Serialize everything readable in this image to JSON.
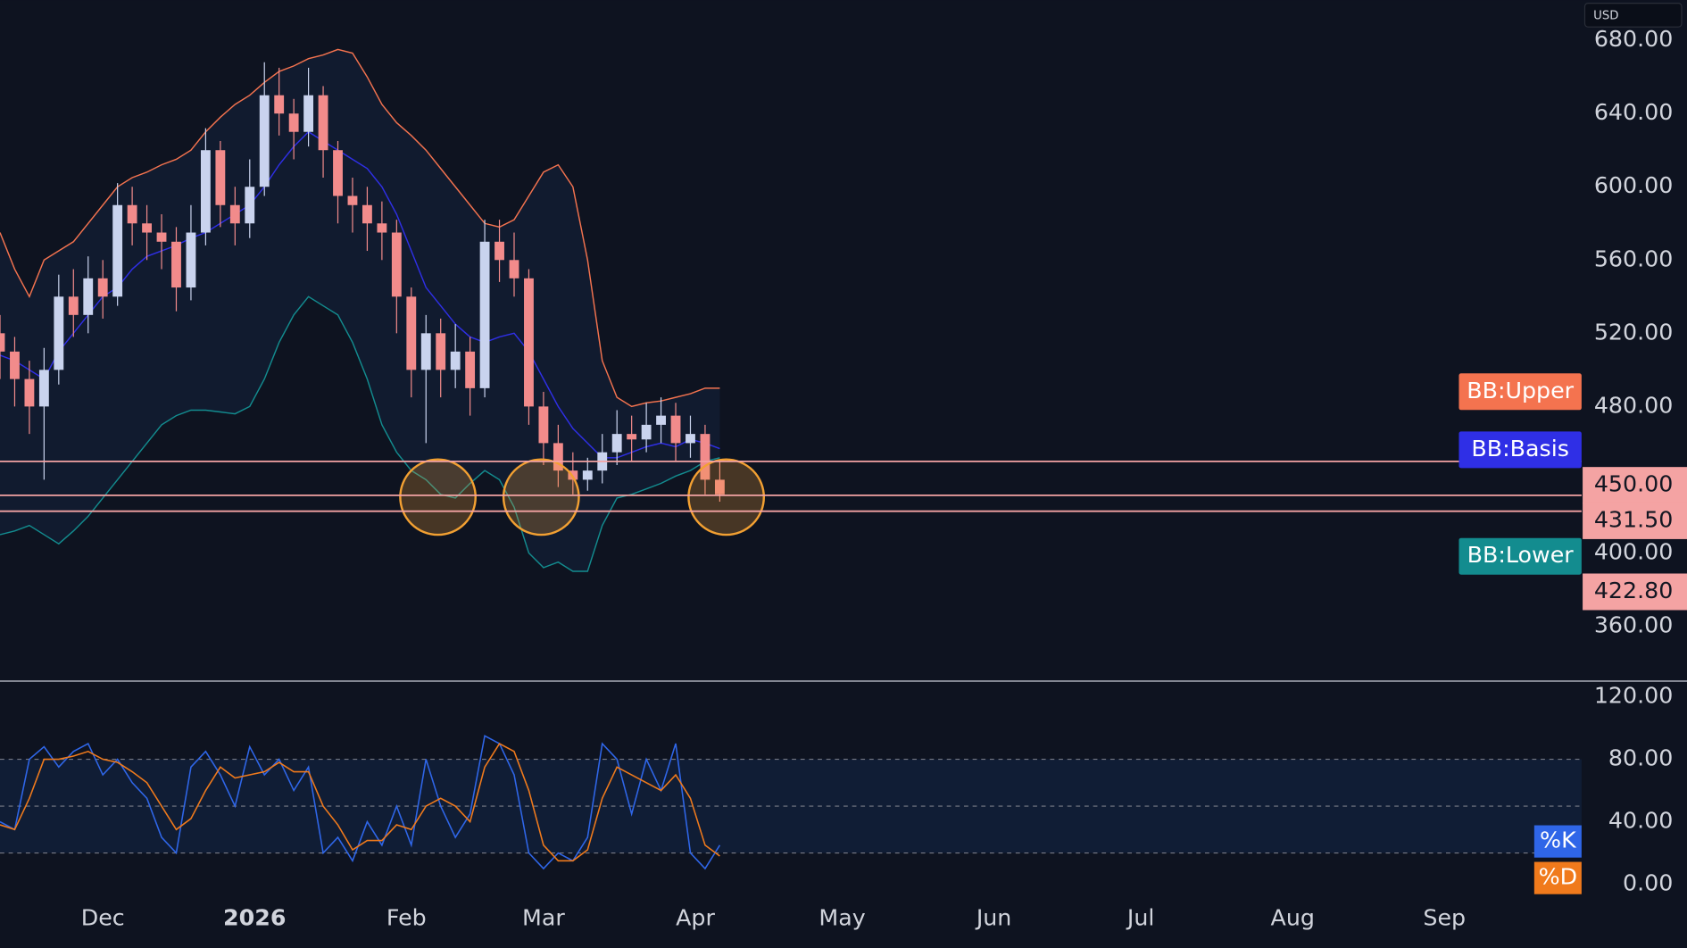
{
  "chart_data": [
    {
      "type": "candlestick",
      "currency": "USD",
      "x": [
        0,
        3,
        6,
        9,
        12,
        15,
        18,
        21,
        24,
        27,
        30,
        33,
        36,
        39,
        42,
        45,
        48,
        51,
        54,
        57,
        60,
        63,
        66,
        69,
        72,
        75,
        78,
        81,
        84,
        87,
        90,
        93,
        96,
        99,
        102,
        105,
        108,
        111,
        114,
        117,
        120,
        123,
        126,
        129,
        132,
        135,
        138,
        141,
        144,
        147
      ],
      "open": [
        520,
        510,
        495,
        480,
        500,
        540,
        530,
        550,
        540,
        590,
        580,
        575,
        570,
        545,
        575,
        620,
        590,
        580,
        600,
        650,
        640,
        630,
        650,
        620,
        595,
        590,
        580,
        575,
        540,
        500,
        520,
        500,
        510,
        490,
        570,
        560,
        550,
        480,
        460,
        445,
        440,
        445,
        455,
        465,
        462,
        470,
        475,
        460,
        465,
        440
      ],
      "high": [
        530,
        518,
        505,
        512,
        552,
        555,
        562,
        560,
        602,
        600,
        590,
        585,
        578,
        590,
        632,
        625,
        600,
        615,
        668,
        665,
        648,
        665,
        655,
        625,
        605,
        600,
        592,
        582,
        545,
        530,
        528,
        525,
        518,
        582,
        582,
        575,
        555,
        488,
        470,
        455,
        452,
        465,
        478,
        475,
        482,
        485,
        482,
        475,
        470,
        450
      ],
      "low": [
        495,
        480,
        465,
        440,
        492,
        518,
        520,
        528,
        535,
        568,
        560,
        555,
        532,
        538,
        568,
        578,
        568,
        572,
        595,
        628,
        615,
        622,
        605,
        580,
        575,
        565,
        560,
        520,
        485,
        460,
        485,
        490,
        475,
        485,
        548,
        540,
        470,
        448,
        436,
        432,
        434,
        438,
        448,
        450,
        455,
        460,
        450,
        452,
        432,
        428
      ],
      "close": [
        510,
        495,
        480,
        500,
        540,
        530,
        550,
        540,
        590,
        580,
        575,
        570,
        545,
        575,
        620,
        590,
        580,
        600,
        650,
        640,
        630,
        650,
        620,
        595,
        590,
        580,
        575,
        540,
        500,
        520,
        500,
        510,
        490,
        570,
        560,
        550,
        480,
        460,
        445,
        440,
        445,
        455,
        465,
        462,
        470,
        475,
        460,
        465,
        440,
        432
      ],
      "up_color": "#c9d3ee",
      "down_color": "#f28b8b",
      "series": [
        {
          "name": "BB:Upper",
          "color": "#f4734f",
          "values": [
            575,
            555,
            540,
            560,
            565,
            570,
            580,
            590,
            600,
            605,
            608,
            612,
            615,
            620,
            630,
            638,
            645,
            650,
            657,
            663,
            666,
            670,
            672,
            675,
            673,
            660,
            645,
            635,
            628,
            620,
            610,
            600,
            590,
            580,
            578,
            582,
            595,
            608,
            612,
            600,
            560,
            505,
            485,
            480,
            482,
            483,
            485,
            487,
            490,
            490
          ]
        },
        {
          "name": "BB:Basis",
          "color": "#2f2fe6",
          "values": [
            508,
            505,
            500,
            495,
            510,
            520,
            530,
            540,
            545,
            555,
            562,
            565,
            568,
            572,
            575,
            580,
            585,
            590,
            600,
            612,
            622,
            630,
            625,
            620,
            615,
            610,
            600,
            585,
            565,
            545,
            535,
            525,
            518,
            515,
            518,
            520,
            510,
            495,
            480,
            468,
            460,
            452,
            452,
            455,
            458,
            460,
            458,
            462,
            460,
            457
          ]
        },
        {
          "name": "BB:Lower",
          "color": "#138c8f",
          "values": [
            410,
            412,
            415,
            410,
            405,
            412,
            420,
            430,
            440,
            450,
            460,
            470,
            475,
            478,
            478,
            477,
            476,
            480,
            495,
            515,
            530,
            540,
            535,
            530,
            515,
            495,
            470,
            455,
            445,
            440,
            432,
            430,
            438,
            445,
            440,
            425,
            400,
            392,
            395,
            390,
            390,
            415,
            430,
            432,
            435,
            438,
            442,
            445,
            450,
            452
          ]
        }
      ],
      "hlines": [
        {
          "value": 450,
          "label": "450.00"
        },
        {
          "value": 431.5,
          "label": "431.50"
        },
        {
          "value": 422.8,
          "label": "422.80"
        }
      ],
      "hline_color": "#f4a3a3",
      "xlim": [
        0,
        323
      ],
      "xticks": [
        {
          "value": 21,
          "label": "Dec"
        },
        {
          "value": 52,
          "label": "2026"
        },
        {
          "value": 83,
          "label": "Feb"
        },
        {
          "value": 111,
          "label": "Mar"
        },
        {
          "value": 142,
          "label": "Apr"
        },
        {
          "value": 172,
          "label": "May"
        },
        {
          "value": 203,
          "label": "Jun"
        },
        {
          "value": 233,
          "label": "Jul"
        },
        {
          "value": 264,
          "label": "Aug"
        },
        {
          "value": 295,
          "label": "Sep"
        }
      ],
      "ylim": [
        330,
        702
      ],
      "yticks": [
        {
          "value": 680,
          "label": "680.00"
        },
        {
          "value": 640,
          "label": "640.00"
        },
        {
          "value": 600,
          "label": "600.00"
        },
        {
          "value": 560,
          "label": "560.00"
        },
        {
          "value": 520,
          "label": "520.00"
        },
        {
          "value": 480,
          "label": "480.00"
        },
        {
          "value": 400,
          "label": "400.00"
        },
        {
          "value": 360,
          "label": "360.00"
        }
      ]
    },
    {
      "type": "line",
      "series": [
        {
          "name": "%K",
          "color": "#2f66e8",
          "values": [
            40,
            35,
            80,
            88,
            75,
            85,
            90,
            70,
            80,
            65,
            55,
            30,
            20,
            75,
            85,
            70,
            50,
            88,
            70,
            80,
            60,
            75,
            20,
            30,
            15,
            40,
            25,
            50,
            25,
            80,
            50,
            30,
            45,
            95,
            90,
            70,
            20,
            10,
            20,
            15,
            30,
            90,
            80,
            45,
            80,
            60,
            90,
            20,
            10,
            25
          ]
        },
        {
          "name": "%D",
          "color": "#f07a1c",
          "values": [
            38,
            35,
            55,
            80,
            80,
            82,
            85,
            80,
            78,
            72,
            65,
            50,
            35,
            42,
            60,
            75,
            68,
            70,
            72,
            78,
            72,
            72,
            50,
            38,
            22,
            28,
            28,
            38,
            35,
            50,
            55,
            50,
            40,
            75,
            90,
            85,
            60,
            25,
            15,
            15,
            22,
            55,
            75,
            70,
            65,
            60,
            70,
            55,
            25,
            18
          ]
        }
      ],
      "levels": [
        80,
        50,
        20
      ],
      "ylim": [
        -16,
        130
      ],
      "yticks": [
        {
          "value": 0,
          "label": "0.00"
        },
        {
          "value": 40,
          "label": "40.00"
        },
        {
          "value": 80,
          "label": "80.00"
        },
        {
          "value": 120,
          "label": "120.00"
        }
      ]
    }
  ]
}
